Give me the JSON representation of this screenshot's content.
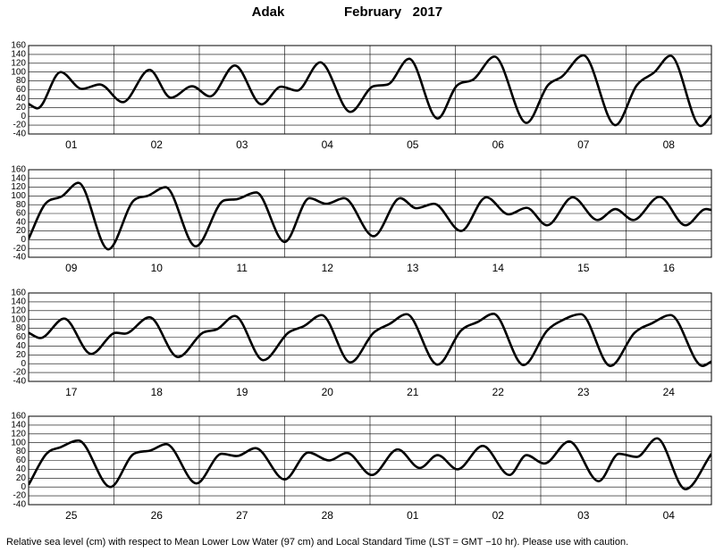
{
  "title": "Adak",
  "subtitle": "February   2017",
  "note": "Relative sea level (cm) with respect to Mean Lower Low Water (97 cm) and Local Standard Time (LST = GMT −10 hr). Please use with caution.",
  "chart_data": [
    {
      "type": "line",
      "color": "#000000",
      "grid": true,
      "xlim": [
        0,
        192
      ],
      "ylim": [
        -40,
        160
      ],
      "yticks": [
        -40,
        -20,
        0,
        20,
        40,
        60,
        80,
        100,
        120,
        140,
        160
      ],
      "xticks": [
        {
          "value": 12,
          "label": "01"
        },
        {
          "value": 36,
          "label": "02"
        },
        {
          "value": 60,
          "label": "03"
        },
        {
          "value": 84,
          "label": "04"
        },
        {
          "value": 108,
          "label": "05"
        },
        {
          "value": 132,
          "label": "06"
        },
        {
          "value": 156,
          "label": "07"
        },
        {
          "value": 180,
          "label": "08"
        }
      ],
      "x": [
        0,
        2.5,
        9,
        15,
        20,
        26.5,
        34,
        40,
        46,
        51,
        58,
        65.5,
        71,
        75.5,
        82,
        90.5,
        97,
        101,
        107,
        115,
        120.5,
        125,
        131,
        140,
        146,
        150,
        156,
        165,
        171,
        176,
        180.5,
        189,
        192
      ],
      "values": [
        28,
        18,
        100,
        62,
        72,
        32,
        105,
        42,
        68,
        45,
        115,
        27,
        67,
        58,
        122,
        10,
        68,
        72,
        130,
        -5,
        70,
        83,
        135,
        -15,
        70,
        90,
        138,
        -20,
        70,
        100,
        137,
        -22,
        2
      ]
    },
    {
      "type": "line",
      "color": "#000000",
      "grid": true,
      "xlim": [
        0,
        192
      ],
      "ylim": [
        -40,
        160
      ],
      "yticks": [
        -40,
        -20,
        0,
        20,
        40,
        60,
        80,
        100,
        120,
        140,
        160
      ],
      "xticks": [
        {
          "value": 12,
          "label": "09"
        },
        {
          "value": 36,
          "label": "10"
        },
        {
          "value": 60,
          "label": "11"
        },
        {
          "value": 84,
          "label": "12"
        },
        {
          "value": 108,
          "label": "13"
        },
        {
          "value": 132,
          "label": "14"
        },
        {
          "value": 156,
          "label": "15"
        },
        {
          "value": 180,
          "label": "16"
        }
      ],
      "x": [
        0,
        4.5,
        9.5,
        14,
        22.4,
        29.6,
        33.4,
        38.5,
        47,
        55,
        58,
        64,
        72,
        79,
        83.7,
        88.7,
        97,
        104.5,
        109,
        114,
        121.6,
        128.7,
        135,
        140,
        145.8,
        153,
        160,
        165,
        170,
        177.4,
        184.7,
        190.5,
        192
      ],
      "values": [
        2,
        80,
        100,
        130,
        -22,
        90,
        100,
        120,
        -15,
        90,
        92,
        108,
        -5,
        95,
        82,
        95,
        8,
        95,
        72,
        82,
        20,
        97,
        58,
        73,
        33,
        97,
        45,
        70,
        45,
        98,
        33,
        70,
        68
      ]
    },
    {
      "type": "line",
      "color": "#000000",
      "grid": true,
      "xlim": [
        0,
        192
      ],
      "ylim": [
        -40,
        160
      ],
      "yticks": [
        -40,
        -20,
        0,
        20,
        40,
        60,
        80,
        100,
        120,
        140,
        160
      ],
      "xticks": [
        {
          "value": 12,
          "label": "17"
        },
        {
          "value": 36,
          "label": "18"
        },
        {
          "value": 60,
          "label": "19"
        },
        {
          "value": 84,
          "label": "20"
        },
        {
          "value": 108,
          "label": "21"
        },
        {
          "value": 132,
          "label": "22"
        },
        {
          "value": 156,
          "label": "23"
        },
        {
          "value": 180,
          "label": "24"
        }
      ],
      "x": [
        0,
        3.3,
        10,
        17.6,
        24.6,
        27,
        34,
        42,
        49,
        53,
        58,
        66,
        73,
        77.4,
        82.4,
        90.5,
        97,
        101.5,
        106.3,
        115,
        121.6,
        126.4,
        130.7,
        139.2,
        145.8,
        150,
        155.3,
        163.6,
        170.4,
        175.4,
        180.5,
        189.5,
        192
      ],
      "values": [
        70,
        58,
        102,
        22,
        70,
        68,
        105,
        15,
        70,
        78,
        108,
        8,
        70,
        85,
        110,
        3,
        70,
        90,
        112,
        -2,
        75,
        95,
        113,
        -3,
        75,
        98,
        112,
        -5,
        70,
        92,
        110,
        -5,
        5
      ]
    },
    {
      "type": "line",
      "color": "#000000",
      "grid": true,
      "xlim": [
        0,
        192
      ],
      "ylim": [
        -40,
        160
      ],
      "yticks": [
        -40,
        -20,
        0,
        20,
        40,
        60,
        80,
        100,
        120,
        140,
        160
      ],
      "xticks": [
        {
          "value": 12,
          "label": "25"
        },
        {
          "value": 36,
          "label": "26"
        },
        {
          "value": 60,
          "label": "27"
        },
        {
          "value": 84,
          "label": "28"
        },
        {
          "value": 108,
          "label": "01"
        },
        {
          "value": 132,
          "label": "02"
        },
        {
          "value": 156,
          "label": "03"
        },
        {
          "value": 180,
          "label": "04"
        }
      ],
      "x": [
        0,
        5,
        9,
        14,
        23,
        29.6,
        34,
        38.7,
        47.2,
        54.3,
        58.5,
        63.8,
        72,
        78.7,
        84.5,
        89.5,
        96.5,
        103.8,
        110,
        115,
        120.6,
        127.7,
        135.2,
        140,
        145,
        152,
        160.3,
        166,
        171,
        176.7,
        184.7,
        192
      ],
      "values": [
        5,
        75,
        90,
        105,
        0,
        75,
        82,
        97,
        8,
        75,
        70,
        88,
        17,
        78,
        60,
        77,
        27,
        85,
        43,
        72,
        40,
        93,
        27,
        72,
        53,
        103,
        13,
        75,
        68,
        110,
        -5,
        75
      ]
    }
  ]
}
